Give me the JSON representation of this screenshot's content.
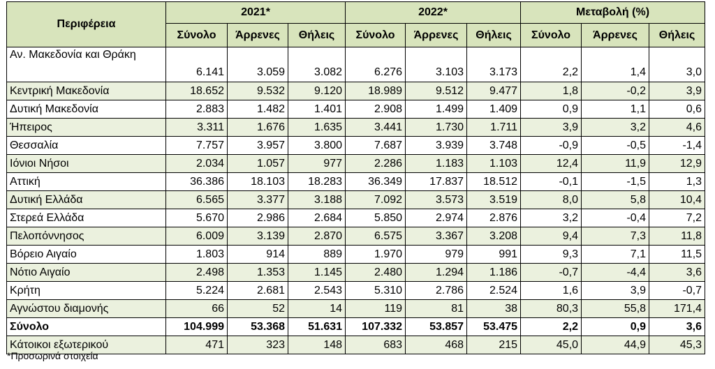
{
  "header": {
    "region_label": "Περιφέρεια",
    "groups": [
      "2021*",
      "2022*",
      "Μεταβολή (%)"
    ],
    "subcols": [
      "Σύνολο",
      "Άρρενες",
      "Θήλεις"
    ]
  },
  "rows": [
    {
      "name": "Αν. Μακεδονία και Θράκη",
      "v": [
        "6.141",
        "3.059",
        "3.082",
        "6.276",
        "3.103",
        "3.173",
        "2,2",
        "1,4",
        "3,0"
      ]
    },
    {
      "name": "Κεντρική Μακεδονία",
      "v": [
        "18.652",
        "9.532",
        "9.120",
        "18.989",
        "9.512",
        "9.477",
        "1,8",
        "-0,2",
        "3,9"
      ]
    },
    {
      "name": "Δυτική Μακεδονία",
      "v": [
        "2.883",
        "1.482",
        "1.401",
        "2.908",
        "1.499",
        "1.409",
        "0,9",
        "1,1",
        "0,6"
      ]
    },
    {
      "name": "Ήπειρος",
      "v": [
        "3.311",
        "1.676",
        "1.635",
        "3.441",
        "1.730",
        "1.711",
        "3,9",
        "3,2",
        "4,6"
      ]
    },
    {
      "name": "Θεσσαλία",
      "v": [
        "7.757",
        "3.957",
        "3.800",
        "7.687",
        "3.939",
        "3.748",
        "-0,9",
        "-0,5",
        "-1,4"
      ]
    },
    {
      "name": "Ιόνιοι Νήσοι",
      "v": [
        "2.034",
        "1.057",
        "977",
        "2.286",
        "1.183",
        "1.103",
        "12,4",
        "11,9",
        "12,9"
      ]
    },
    {
      "name": "Αττική",
      "v": [
        "36.386",
        "18.103",
        "18.283",
        "36.349",
        "17.837",
        "18.512",
        "-0,1",
        "-1,5",
        "1,3"
      ]
    },
    {
      "name": "Δυτική Ελλάδα",
      "v": [
        "6.565",
        "3.377",
        "3.188",
        "7.092",
        "3.573",
        "3.519",
        "8,0",
        "5,8",
        "10,4"
      ]
    },
    {
      "name": "Στερεά Ελλάδα",
      "v": [
        "5.670",
        "2.986",
        "2.684",
        "5.850",
        "2.974",
        "2.876",
        "3,2",
        "-0,4",
        "7,2"
      ]
    },
    {
      "name": "Πελοπόννησος",
      "v": [
        "6.009",
        "3.139",
        "2.870",
        "6.575",
        "3.367",
        "3.208",
        "9,4",
        "7,3",
        "11,8"
      ]
    },
    {
      "name": "Βόρειο Αιγαίο",
      "v": [
        "1.803",
        "914",
        "889",
        "1.970",
        "979",
        "991",
        "9,3",
        "7,1",
        "11,5"
      ]
    },
    {
      "name": "Νότιο Αιγαίο",
      "v": [
        "2.498",
        "1.353",
        "1.145",
        "2.480",
        "1.294",
        "1.186",
        "-0,7",
        "-4,4",
        "3,6"
      ]
    },
    {
      "name": "Κρήτη",
      "v": [
        "5.224",
        "2.681",
        "2.543",
        "5.310",
        "2.786",
        "2.524",
        "1,6",
        "3,9",
        "-0,7"
      ]
    },
    {
      "name": "Αγνώστου διαμονής",
      "v": [
        "66",
        "52",
        "14",
        "119",
        "81",
        "38",
        "80,3",
        "55,8",
        "171,4"
      ]
    }
  ],
  "total": {
    "name": "Σύνολο",
    "v": [
      "104.999",
      "53.368",
      "51.631",
      "107.332",
      "53.857",
      "53.475",
      "2,2",
      "0,9",
      "3,6"
    ]
  },
  "abroad": {
    "name": "Κάτοικοι εξωτερικού",
    "v": [
      "471",
      "323",
      "148",
      "683",
      "468",
      "215",
      "45,0",
      "44,9",
      "45,3"
    ]
  },
  "footnote": "*Προσωρινά στοιχεία",
  "colors": {
    "header_bg": "#d8e4bc",
    "stripe_bg": "#ebf1de"
  }
}
